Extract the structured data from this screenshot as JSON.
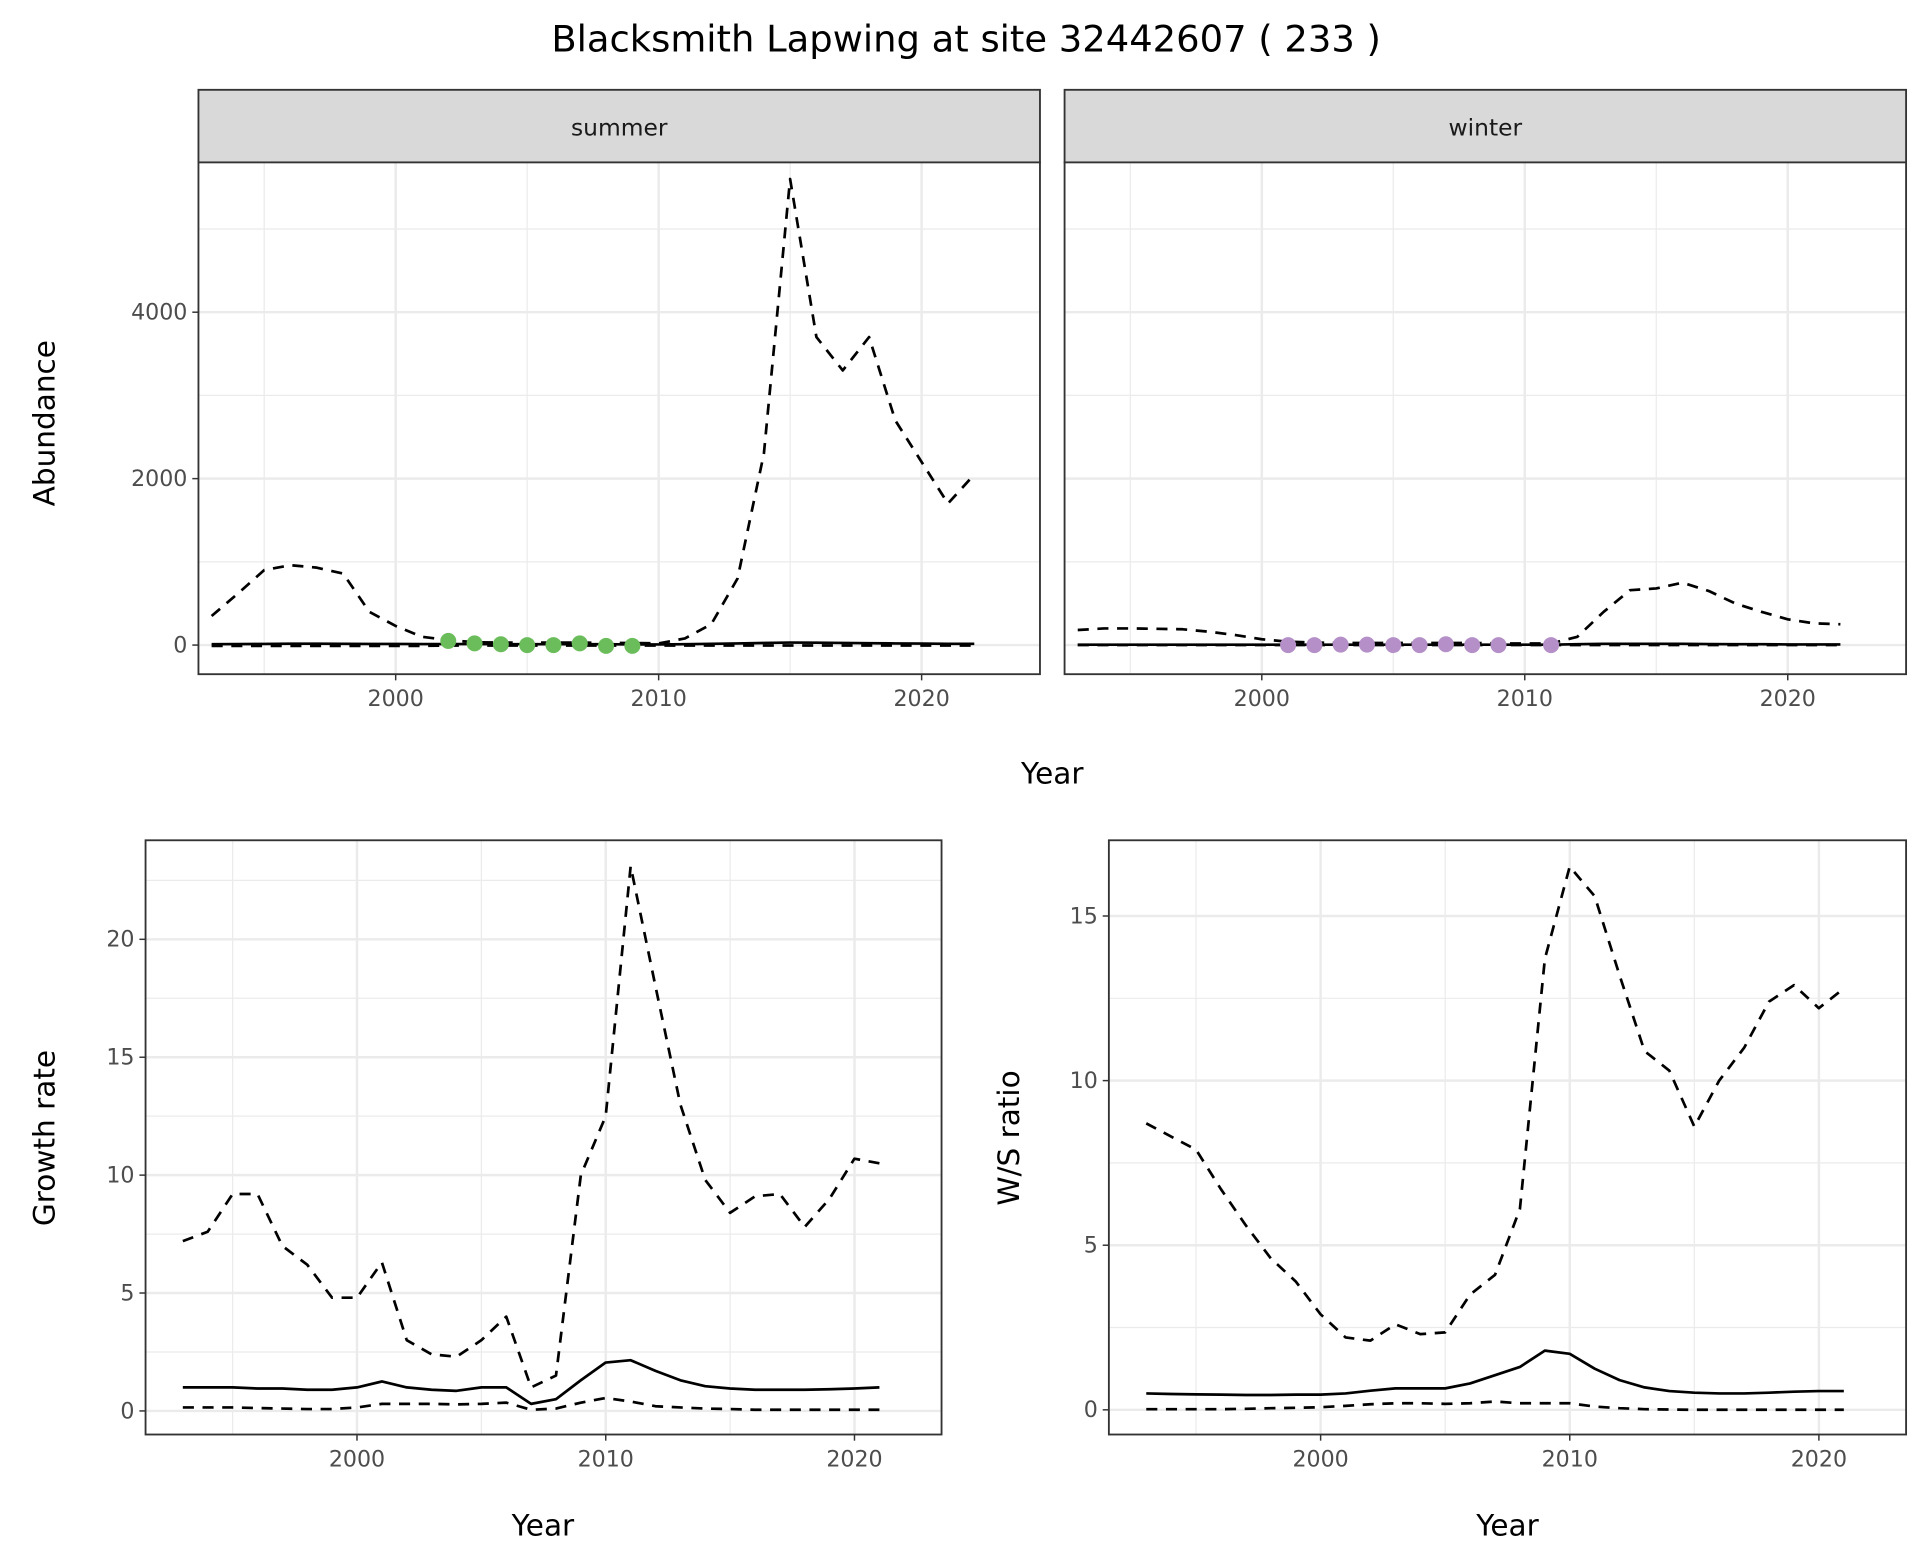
{
  "title": "Blacksmith Lapwing at site 32442607 ( 233 )",
  "chart_data": [
    {
      "type": "line",
      "facet": "summer",
      "xlabel": "Year",
      "ylabel": "Abundance",
      "xlim": [
        1992.5,
        2024.5
      ],
      "ylim": [
        -350,
        5800
      ],
      "xticks": [
        2000,
        2010,
        2020
      ],
      "yticks": [
        0,
        2000,
        4000
      ],
      "x": [
        1993,
        1994,
        1995,
        1996,
        1997,
        1998,
        1999,
        2000,
        2001,
        2002,
        2003,
        2004,
        2005,
        2006,
        2007,
        2008,
        2009,
        2010,
        2011,
        2012,
        2013,
        2014,
        2015,
        2016,
        2017,
        2018,
        2019,
        2020,
        2021,
        2022
      ],
      "series": [
        {
          "name": "upper",
          "style": "dashed",
          "values": [
            350,
            620,
            900,
            960,
            930,
            860,
            400,
            230,
            100,
            60,
            35,
            30,
            30,
            30,
            30,
            25,
            25,
            20,
            80,
            250,
            800,
            2300,
            5600,
            3700,
            3300,
            3700,
            2700,
            2200,
            1700,
            2050
          ]
        },
        {
          "name": "mean",
          "style": "solid",
          "values": [
            10,
            12,
            14,
            16,
            16,
            15,
            14,
            13,
            12,
            12,
            12,
            10,
            10,
            10,
            10,
            10,
            8,
            8,
            10,
            15,
            20,
            25,
            30,
            28,
            25,
            22,
            20,
            18,
            15,
            15
          ]
        },
        {
          "name": "lower",
          "style": "dashed",
          "values": [
            -10,
            -10,
            -10,
            -10,
            -10,
            -10,
            -10,
            -10,
            -10,
            -5,
            -5,
            -5,
            -5,
            -5,
            -5,
            -5,
            -5,
            -5,
            -5,
            -5,
            -5,
            -5,
            -5,
            -5,
            -5,
            -5,
            -5,
            -5,
            -5,
            -5
          ]
        }
      ],
      "points": {
        "color": "#6abd5a",
        "x": [
          2002,
          2003,
          2004,
          2005,
          2006,
          2007,
          2008,
          2009
        ],
        "y": [
          50,
          20,
          10,
          0,
          0,
          20,
          -10,
          -10
        ]
      }
    },
    {
      "type": "line",
      "facet": "winter",
      "xlabel": "Year",
      "ylabel": "Abundance",
      "xlim": [
        1992.5,
        2024.5
      ],
      "ylim": [
        -350,
        5800
      ],
      "xticks": [
        2000,
        2010,
        2020
      ],
      "yticks": [
        0,
        2000,
        4000
      ],
      "x": [
        1993,
        1994,
        1995,
        1996,
        1997,
        1998,
        1999,
        2000,
        2001,
        2002,
        2003,
        2004,
        2005,
        2006,
        2007,
        2008,
        2009,
        2010,
        2011,
        2012,
        2013,
        2014,
        2015,
        2016,
        2017,
        2018,
        2019,
        2020,
        2021,
        2022
      ],
      "series": [
        {
          "name": "upper",
          "style": "dashed",
          "values": [
            180,
            200,
            200,
            195,
            190,
            160,
            120,
            70,
            40,
            30,
            25,
            25,
            25,
            25,
            25,
            25,
            20,
            20,
            20,
            100,
            400,
            660,
            680,
            750,
            650,
            500,
            400,
            310,
            260,
            250
          ]
        },
        {
          "name": "mean",
          "style": "solid",
          "values": [
            5,
            5,
            5,
            5,
            5,
            5,
            5,
            5,
            5,
            5,
            5,
            5,
            5,
            5,
            5,
            5,
            5,
            5,
            5,
            10,
            15,
            15,
            15,
            15,
            12,
            10,
            10,
            8,
            8,
            8
          ]
        },
        {
          "name": "lower",
          "style": "dashed",
          "values": [
            0,
            0,
            0,
            0,
            0,
            0,
            0,
            0,
            0,
            0,
            0,
            0,
            0,
            0,
            0,
            0,
            0,
            0,
            0,
            0,
            0,
            0,
            0,
            0,
            0,
            0,
            0,
            0,
            0,
            0
          ]
        }
      ],
      "points": {
        "color": "#b58fc7",
        "x": [
          2001,
          2002,
          2003,
          2004,
          2005,
          2006,
          2007,
          2008,
          2009,
          2011
        ],
        "y": [
          0,
          0,
          5,
          5,
          0,
          0,
          10,
          0,
          0,
          0
        ]
      }
    },
    {
      "type": "line",
      "xlabel": "Year",
      "ylabel": "Growth rate",
      "xlim": [
        1991.5,
        2023.5
      ],
      "ylim": [
        -1.0,
        24.2
      ],
      "xticks": [
        2000,
        2010,
        2020
      ],
      "yticks": [
        0,
        5,
        10,
        15,
        20
      ],
      "x": [
        1993,
        1994,
        1995,
        1996,
        1997,
        1998,
        1999,
        2000,
        2001,
        2002,
        2003,
        2004,
        2005,
        2006,
        2007,
        2008,
        2009,
        2010,
        2011,
        2012,
        2013,
        2014,
        2015,
        2016,
        2017,
        2018,
        2019,
        2020,
        2021
      ],
      "series": [
        {
          "name": "upper",
          "style": "dashed",
          "values": [
            7.2,
            7.6,
            9.2,
            9.2,
            7.0,
            6.2,
            4.8,
            4.8,
            6.3,
            3.0,
            2.4,
            2.3,
            3.0,
            4.0,
            1.0,
            1.5,
            10.0,
            12.5,
            23.1,
            18.0,
            13.0,
            9.8,
            8.4,
            9.1,
            9.2,
            7.8,
            9.0,
            10.7,
            10.5
          ]
        },
        {
          "name": "mean",
          "style": "solid",
          "values": [
            1.0,
            1.0,
            1.0,
            0.95,
            0.95,
            0.9,
            0.9,
            1.0,
            1.25,
            1.0,
            0.9,
            0.85,
            1.0,
            1.0,
            0.3,
            0.5,
            1.3,
            2.05,
            2.15,
            1.7,
            1.3,
            1.05,
            0.95,
            0.9,
            0.9,
            0.9,
            0.92,
            0.95,
            1.0
          ]
        },
        {
          "name": "lower",
          "style": "dashed",
          "values": [
            0.15,
            0.15,
            0.15,
            0.12,
            0.1,
            0.08,
            0.08,
            0.15,
            0.3,
            0.3,
            0.3,
            0.28,
            0.3,
            0.35,
            0.05,
            0.1,
            0.35,
            0.55,
            0.4,
            0.2,
            0.15,
            0.1,
            0.08,
            0.05,
            0.05,
            0.05,
            0.05,
            0.05,
            0.05
          ]
        }
      ]
    },
    {
      "type": "line",
      "xlabel": "Year",
      "ylabel": "W/S ratio",
      "xlim": [
        1991.5,
        2023.5
      ],
      "ylim": [
        -0.75,
        17.3
      ],
      "xticks": [
        2000,
        2010,
        2020
      ],
      "yticks": [
        0,
        5,
        10,
        15
      ],
      "x": [
        1993,
        1994,
        1995,
        1996,
        1997,
        1998,
        1999,
        2000,
        2001,
        2002,
        2003,
        2004,
        2005,
        2006,
        2007,
        2008,
        2009,
        2010,
        2011,
        2012,
        2013,
        2014,
        2015,
        2016,
        2017,
        2018,
        2019,
        2020,
        2021
      ],
      "series": [
        {
          "name": "upper",
          "style": "dashed",
          "values": [
            8.7,
            8.3,
            7.9,
            6.7,
            5.6,
            4.6,
            3.9,
            2.9,
            2.2,
            2.1,
            2.6,
            2.3,
            2.35,
            3.5,
            4.1,
            6.1,
            13.7,
            16.5,
            15.6,
            13.2,
            10.9,
            10.3,
            8.6,
            10.0,
            11.0,
            12.4,
            12.9,
            12.2,
            12.8
          ]
        },
        {
          "name": "mean",
          "style": "solid",
          "values": [
            0.5,
            0.48,
            0.47,
            0.46,
            0.45,
            0.45,
            0.46,
            0.46,
            0.5,
            0.58,
            0.65,
            0.65,
            0.65,
            0.8,
            1.05,
            1.3,
            1.8,
            1.7,
            1.25,
            0.9,
            0.68,
            0.57,
            0.52,
            0.5,
            0.5,
            0.52,
            0.55,
            0.57,
            0.57
          ]
        },
        {
          "name": "lower",
          "style": "dashed",
          "values": [
            0.02,
            0.02,
            0.02,
            0.02,
            0.03,
            0.05,
            0.06,
            0.08,
            0.12,
            0.17,
            0.2,
            0.2,
            0.18,
            0.2,
            0.25,
            0.2,
            0.2,
            0.2,
            0.1,
            0.05,
            0.02,
            0.01,
            0,
            0,
            0,
            0,
            0,
            0,
            0
          ]
        }
      ]
    }
  ]
}
